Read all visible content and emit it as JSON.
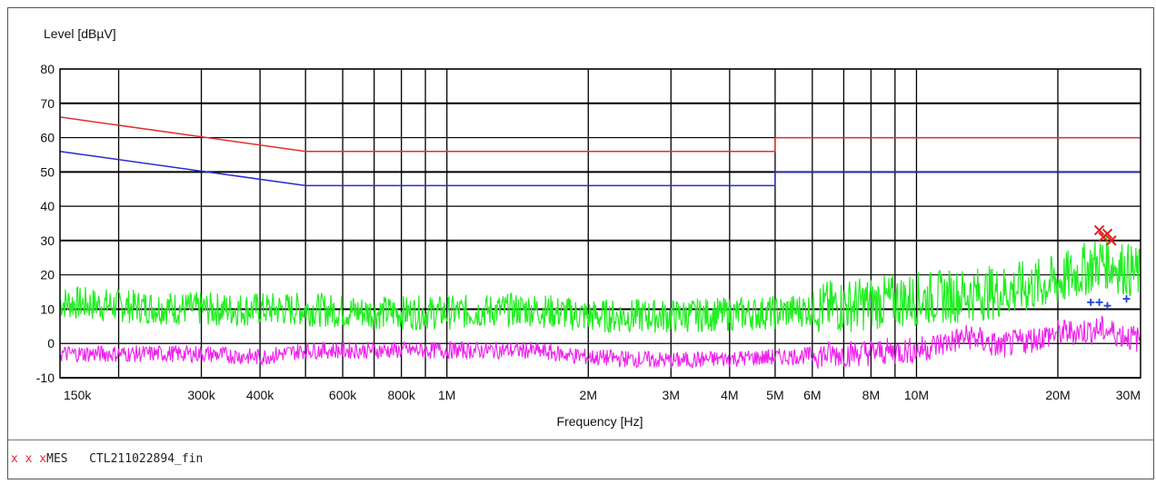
{
  "chart_data": {
    "type": "line",
    "title": "",
    "ylabel": "Level [dBµV]",
    "xlabel": "Frequency [Hz]",
    "x_scale": "log",
    "xlim": [
      150000,
      30000000
    ],
    "ylim": [
      -10,
      80
    ],
    "y_ticks": [
      80,
      70,
      60,
      50,
      40,
      30,
      20,
      10,
      0,
      -10
    ],
    "y_tick_labels": [
      "80",
      "70",
      "60",
      "50",
      "40",
      "30",
      "20",
      "10",
      "0",
      "-10"
    ],
    "x_ticks": [
      150000,
      300000,
      400000,
      600000,
      800000,
      1000000,
      2000000,
      3000000,
      4000000,
      5000000,
      6000000,
      8000000,
      10000000,
      20000000,
      30000000
    ],
    "x_tick_labels": [
      "150k",
      "300k",
      "400k",
      "600k",
      "800k",
      "1M",
      "2M",
      "3M",
      "4M",
      "5M",
      "6M",
      "8M",
      "10M",
      "20M",
      "30M"
    ],
    "grid": true,
    "series": [
      {
        "color": "#e03030",
        "values": [
          [
            150000,
            66
          ],
          [
            500000,
            56
          ],
          [
            5000000,
            56
          ],
          [
            5000000,
            60
          ],
          [
            30000000,
            60
          ]
        ]
      },
      {
        "color": "#2a2ad0",
        "values": [
          [
            150000,
            56
          ],
          [
            500000,
            46
          ],
          [
            5000000,
            46
          ],
          [
            5000000,
            50
          ],
          [
            30000000,
            50
          ]
        ]
      },
      {
        "color": "#22ee22",
        "values": [
          [
            150000,
            12
          ],
          [
            200000,
            11
          ],
          [
            300000,
            10
          ],
          [
            500000,
            10
          ],
          [
            700000,
            9
          ],
          [
            1000000,
            9
          ],
          [
            1500000,
            10
          ],
          [
            2000000,
            8
          ],
          [
            3000000,
            8
          ],
          [
            5000000,
            9
          ],
          [
            7000000,
            11
          ],
          [
            10000000,
            13
          ],
          [
            15000000,
            15
          ],
          [
            20000000,
            18
          ],
          [
            25000000,
            24
          ],
          [
            30000000,
            20
          ]
        ]
      },
      {
        "color": "#ee22ee",
        "values": [
          [
            150000,
            -3
          ],
          [
            300000,
            -3
          ],
          [
            400000,
            -4
          ],
          [
            500000,
            -2
          ],
          [
            700000,
            -2
          ],
          [
            1000000,
            -2
          ],
          [
            1500000,
            -2
          ],
          [
            2000000,
            -4
          ],
          [
            3000000,
            -5
          ],
          [
            5000000,
            -4
          ],
          [
            7000000,
            -3
          ],
          [
            10000000,
            -2
          ],
          [
            13000000,
            2
          ],
          [
            15000000,
            -1
          ],
          [
            20000000,
            3
          ],
          [
            25000000,
            4
          ],
          [
            30000000,
            1
          ]
        ]
      }
    ],
    "markers": {
      "red_x": [
        [
          24500000,
          33
        ],
        [
          25000000,
          31
        ],
        [
          25500000,
          32
        ],
        [
          26000000,
          30
        ]
      ],
      "blue_plus": [
        [
          23500000,
          12
        ],
        [
          24500000,
          12
        ],
        [
          25500000,
          11
        ],
        [
          28000000,
          13
        ]
      ]
    }
  },
  "legend": {
    "marker_symbols": "x x x",
    "label": "MES",
    "file_name": "CTL211022894_fin"
  }
}
